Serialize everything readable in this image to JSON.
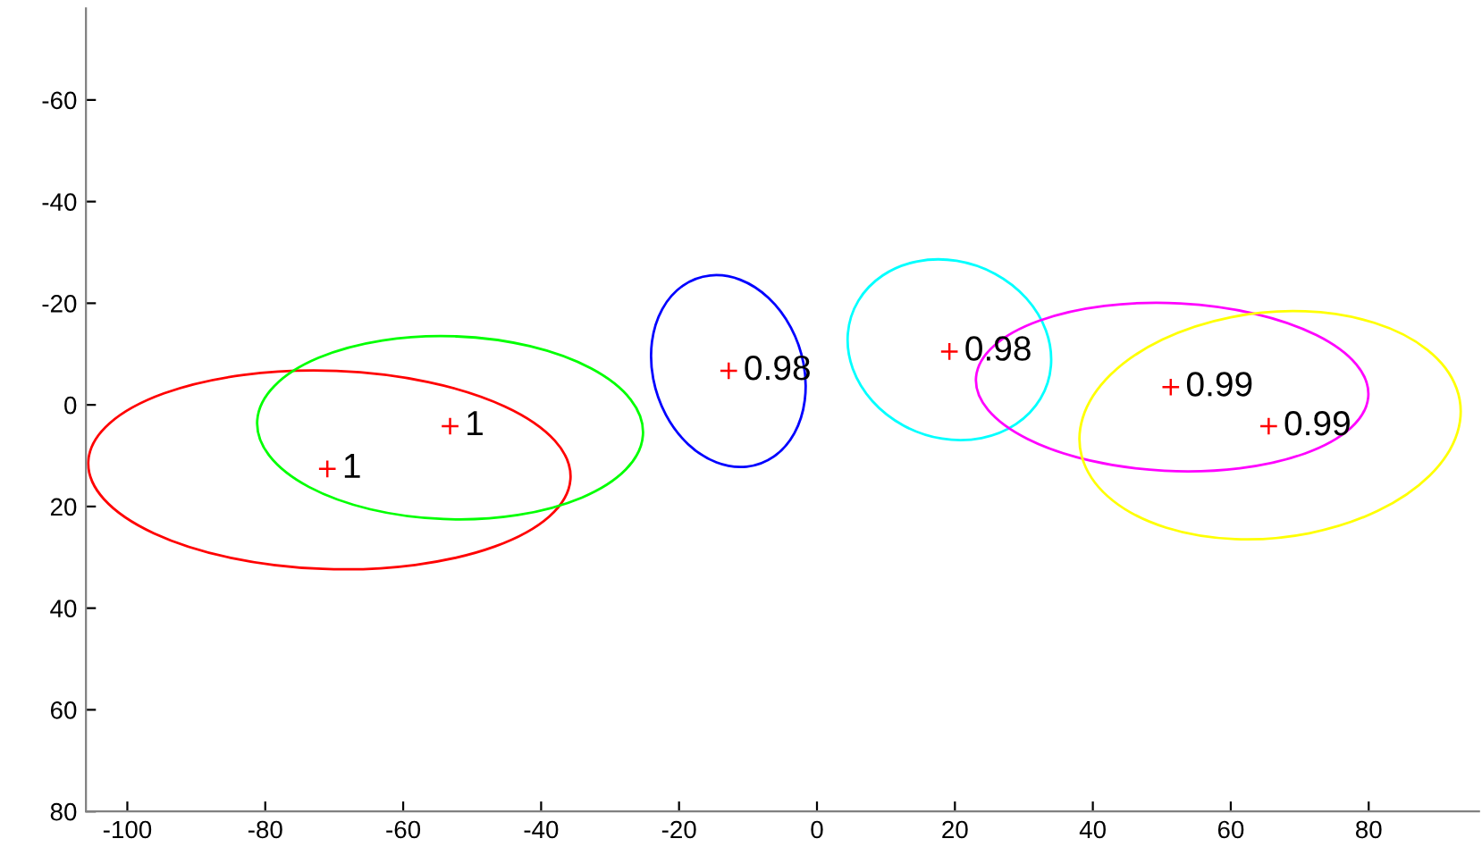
{
  "chart_data": {
    "type": "scatter",
    "xlim": [
      -106,
      96
    ],
    "ylim": [
      80,
      -78
    ],
    "xticks": [
      -100,
      -80,
      -60,
      -40,
      -20,
      0,
      20,
      40,
      60,
      80
    ],
    "yticks": [
      -60,
      -40,
      -20,
      0,
      20,
      40,
      60,
      80
    ],
    "grid": false,
    "annotations": [
      {
        "text": "1",
        "x": -71.0,
        "y": 12.6
      },
      {
        "text": "1",
        "x": -53.2,
        "y": 4.2
      },
      {
        "text": "0.98",
        "x": -12.8,
        "y": -6.7
      },
      {
        "text": "0.98",
        "x": 19.2,
        "y": -10.5
      },
      {
        "text": "0.99",
        "x": 51.3,
        "y": -3.5
      },
      {
        "text": "0.99",
        "x": 65.5,
        "y": 4.2
      }
    ],
    "series": [
      {
        "color": "#ff0000",
        "marker": "cross",
        "x": [
          -71.0,
          -53.2,
          -12.8,
          19.2,
          51.3,
          65.5
        ],
        "values": [
          12.6,
          4.2,
          -6.7,
          -10.5,
          -3.5,
          4.2
        ]
      }
    ]
  }
}
